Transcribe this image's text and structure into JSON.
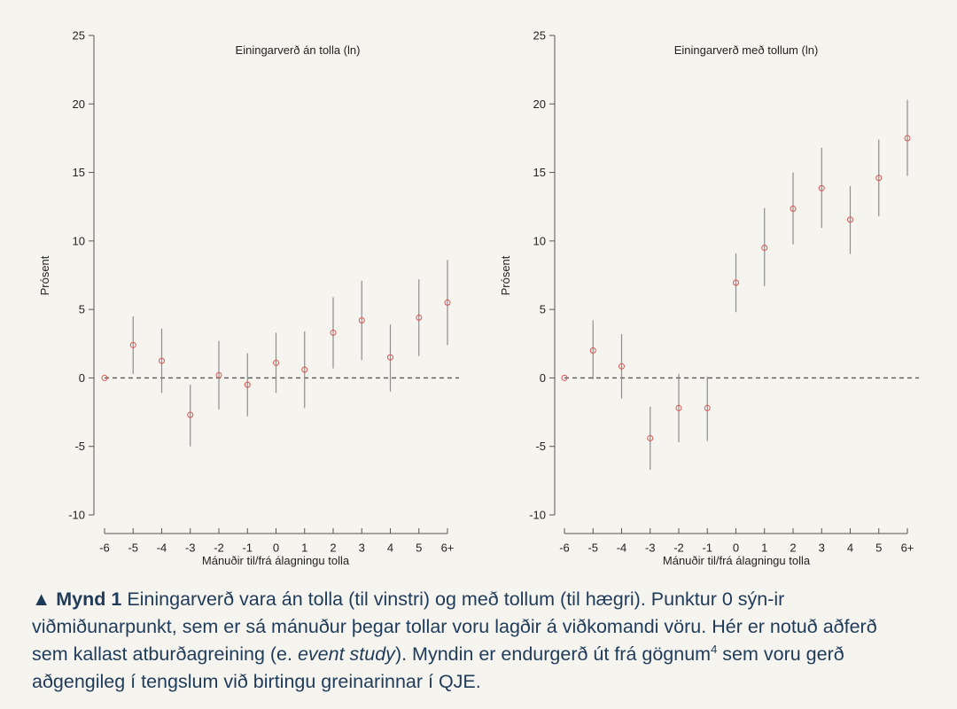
{
  "chart_data": [
    {
      "type": "scatter",
      "title": "Einingarverð án tolla (ln)",
      "xlabel": "Mánuðir til/frá álagningu tolla",
      "ylabel": "Prósent",
      "ylim": [
        -10,
        25
      ],
      "yticks": [
        -10,
        -5,
        0,
        5,
        10,
        15,
        20,
        25
      ],
      "categories": [
        "-6",
        "-5",
        "-4",
        "-3",
        "-2",
        "-1",
        "0",
        "1",
        "2",
        "3",
        "4",
        "5",
        "6+"
      ],
      "values": [
        0,
        2.4,
        1.25,
        -2.7,
        0.2,
        -0.5,
        1.1,
        0.6,
        3.3,
        4.2,
        1.5,
        4.4,
        5.5
      ],
      "ci_low": [
        0,
        0.3,
        -1.1,
        -5.0,
        -2.3,
        -2.8,
        -1.1,
        -2.2,
        0.7,
        1.3,
        -1.0,
        1.6,
        2.4
      ],
      "ci_high": [
        0,
        4.5,
        3.6,
        -0.5,
        2.7,
        1.8,
        3.3,
        3.4,
        5.9,
        7.1,
        3.9,
        7.2,
        8.6
      ],
      "reference_line": 0
    },
    {
      "type": "scatter",
      "title": "Einingarverð með tollum (ln)",
      "xlabel": "Mánuðir til/frá álagningu tolla",
      "ylabel": "Prósent",
      "ylim": [
        -10,
        25
      ],
      "yticks": [
        -10,
        -5,
        0,
        5,
        10,
        15,
        20,
        25
      ],
      "categories": [
        "-6",
        "-5",
        "-4",
        "-3",
        "-2",
        "-1",
        "0",
        "1",
        "2",
        "3",
        "4",
        "5",
        "6+"
      ],
      "values": [
        0,
        2.0,
        0.85,
        -4.4,
        -2.2,
        -2.2,
        6.95,
        9.5,
        12.35,
        13.85,
        11.55,
        14.6,
        17.5
      ],
      "ci_low": [
        0,
        -0.1,
        -1.5,
        -6.7,
        -4.7,
        -4.6,
        4.8,
        6.7,
        9.75,
        10.95,
        9.05,
        11.8,
        14.75
      ],
      "ci_high": [
        0,
        4.2,
        3.2,
        -2.1,
        0.3,
        0.1,
        9.1,
        12.4,
        15.0,
        16.8,
        14.0,
        17.4,
        20.3
      ],
      "reference_line": 0
    }
  ],
  "colors": {
    "point": "#d9534f",
    "whisker": "#8d8d8d",
    "axis": "#555555",
    "reference": "#555555",
    "caption": "#1f3b5a"
  },
  "caption": {
    "marker": "▲",
    "lead": "Mynd 1",
    "text_1": " Einingarverð vara án tolla (til vinstri) og með tollum (til hægri). Punktur 0 sýn-ir viðmiðunarpunkt, sem er sá mánuður þegar tollar voru lagðir á viðkomandi vöru. Hér er notuð aðferð sem kallast atburðagreining (e. ",
    "italic": "event study",
    "text_2": "). Myndin er endurgerð út frá gögnum",
    "sup": "4",
    "text_3": " sem voru gerð aðgengileg í tengslum við birtingu greinarinnar í QJE."
  }
}
